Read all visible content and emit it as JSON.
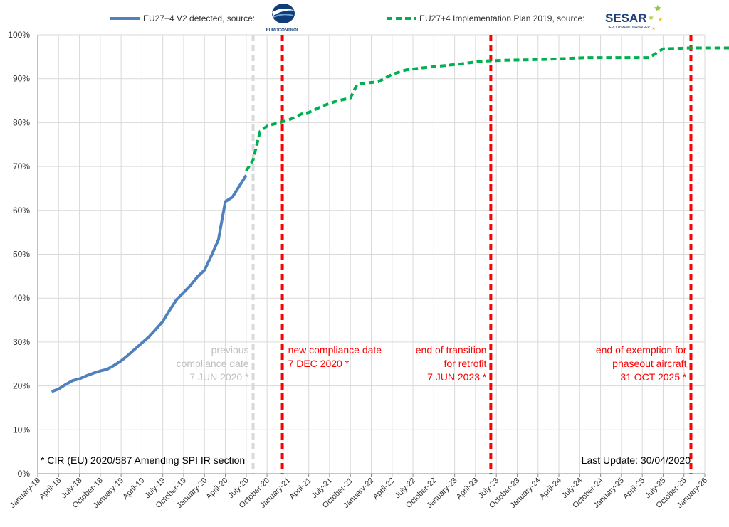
{
  "chart_data": {
    "type": "line",
    "legend": [
      {
        "label": "EU27+4 V2 detected, source:",
        "logo": "eurocontrol-logo",
        "logo_text": "EUROCONTROL",
        "style": "solid",
        "color": "#4f81bd"
      },
      {
        "label": "EU27+4 Implementation Plan 2019, source:",
        "logo": "sesar-deployment-manager-logo",
        "logo_text": "SESAR",
        "logo_subtext": "DEPLOYMENT MANAGER",
        "style": "dashed",
        "color": "#00b050"
      }
    ],
    "ylim": [
      0,
      100
    ],
    "y_ticks": [
      "0%",
      "10%",
      "20%",
      "30%",
      "40%",
      "50%",
      "60%",
      "70%",
      "80%",
      "90%",
      "100%"
    ],
    "x_ticks": [
      "January-18",
      "April-18",
      "July-18",
      "October-18",
      "January-19",
      "April-19",
      "July-19",
      "October-19",
      "January-20",
      "April-20",
      "July-20",
      "October-20",
      "January-21",
      "April-21",
      "July-21",
      "October-21",
      "January-22",
      "April-22",
      "July-22",
      "October-22",
      "January-23",
      "April-23",
      "July-23",
      "October-23",
      "January-24",
      "April-24",
      "July-24",
      "October-24",
      "January-25",
      "April-25",
      "July-25",
      "October-25",
      "January-26"
    ],
    "series": [
      {
        "name": "EU27+4 V2 detected",
        "color": "#4f81bd",
        "style": "solid",
        "points": [
          [
            2,
            18.7
          ],
          [
            3,
            19.3
          ],
          [
            4,
            20.3
          ],
          [
            5,
            21.2
          ],
          [
            6,
            21.6
          ],
          [
            7,
            22.3
          ],
          [
            8,
            22.9
          ],
          [
            9,
            23.4
          ],
          [
            10,
            23.8
          ],
          [
            11,
            24.7
          ],
          [
            12,
            25.7
          ],
          [
            13,
            27.0
          ],
          [
            14,
            28.4
          ],
          [
            15,
            29.8
          ],
          [
            16,
            31.2
          ],
          [
            17,
            32.9
          ],
          [
            18,
            34.7
          ],
          [
            19,
            37.3
          ],
          [
            20,
            39.7
          ],
          [
            21,
            41.3
          ],
          [
            22,
            42.9
          ],
          [
            23,
            44.9
          ],
          [
            24,
            46.4
          ],
          [
            25,
            49.7
          ],
          [
            26,
            53.3
          ],
          [
            27,
            62.0
          ],
          [
            28,
            63.0
          ],
          [
            29,
            65.5
          ],
          [
            30,
            68.0
          ]
        ]
      },
      {
        "name": "EU27+4 Implementation Plan 2019",
        "color": "#00b050",
        "style": "dashed",
        "points": [
          [
            30,
            69.0
          ],
          [
            31,
            71.5
          ],
          [
            32,
            78.0
          ],
          [
            33,
            79.2
          ],
          [
            34,
            79.7
          ],
          [
            36,
            80.5
          ],
          [
            38,
            82.0
          ],
          [
            39,
            82.3
          ],
          [
            41,
            83.8
          ],
          [
            43,
            84.9
          ],
          [
            45,
            85.6
          ],
          [
            46,
            88.8
          ],
          [
            49,
            89.3
          ],
          [
            51,
            91.0
          ],
          [
            53,
            92.0
          ],
          [
            55,
            92.4
          ],
          [
            58,
            92.9
          ],
          [
            61,
            93.4
          ],
          [
            64,
            94.0
          ],
          [
            67,
            94.2
          ],
          [
            70,
            94.3
          ],
          [
            73,
            94.4
          ],
          [
            76,
            94.6
          ],
          [
            79,
            94.8
          ],
          [
            82,
            94.8
          ],
          [
            85,
            94.8
          ],
          [
            88,
            94.8
          ],
          [
            90,
            96.8
          ],
          [
            94,
            97.0
          ],
          [
            97,
            97.0
          ],
          [
            100,
            97.0
          ],
          [
            101,
            97.0
          ]
        ]
      }
    ],
    "milestones": [
      {
        "x": 31,
        "color": "#d9d9d9",
        "text": [
          "previous",
          "compliance date",
          "7 JUN 2020 *"
        ],
        "text_color": "#bfbfbf",
        "anchor": "end"
      },
      {
        "x": 35.2,
        "color": "#ff0000",
        "text": [
          "new compliance date",
          "7 DEC 2020 *"
        ],
        "text_color": "#ff0000",
        "anchor": "start"
      },
      {
        "x": 65.2,
        "color": "#ff0000",
        "text": [
          "end of transition",
          "for retrofit",
          "7 JUN 2023 *"
        ],
        "text_color": "#ff0000",
        "anchor": "end"
      },
      {
        "x": 94,
        "color": "#ff0000",
        "text": [
          "end of exemption for",
          "phaseout aircraft",
          "31 OCT 2025 *"
        ],
        "text_color": "#ff0000",
        "anchor": "end"
      }
    ],
    "footnote": "* CIR (EU) 2020/587 Amending SPI IR section",
    "last_update": "Last Update: 30/04/2020",
    "grid": true
  }
}
